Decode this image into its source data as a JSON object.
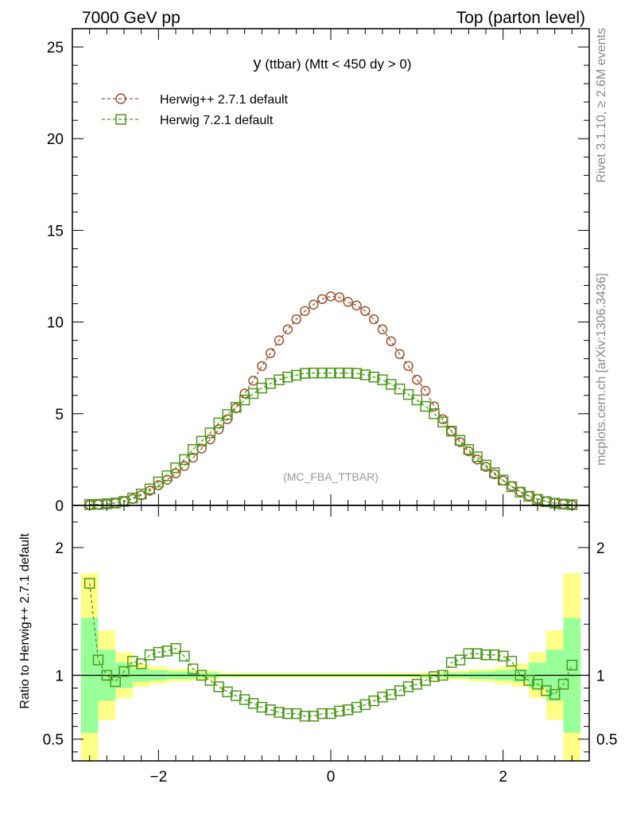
{
  "header": {
    "left": "7000 GeV pp",
    "right": "Top (parton level)"
  },
  "side_text": {
    "rivet": "Rivet 3.1.10, ≥ 2.6M events",
    "mcplots": "mcplots.cern.ch [arXiv:1306.3436]"
  },
  "watermark": "(MC_FBA_TTBAR)",
  "ratio_ylabel": "Ratio to Herwig++ 2.7.1 default",
  "chart_data": {
    "type": "line",
    "title_main": "y",
    "title_rest": " (ttbar) (Mtt < 450 dy > 0)",
    "xlim": [
      -3.0,
      3.0
    ],
    "ylim_main": [
      0,
      26
    ],
    "ylim_ratio": [
      0.33,
      2.33
    ],
    "x_ticks": [
      -2,
      0,
      2
    ],
    "y_ticks_main": [
      0,
      5,
      10,
      15,
      20,
      25
    ],
    "y_ticks_ratio": [
      0.5,
      1,
      2
    ],
    "x": [
      -2.8,
      -2.7,
      -2.6,
      -2.5,
      -2.4,
      -2.3,
      -2.2,
      -2.1,
      -2.0,
      -1.9,
      -1.8,
      -1.7,
      -1.6,
      -1.5,
      -1.4,
      -1.3,
      -1.2,
      -1.1,
      -1.0,
      -0.9,
      -0.8,
      -0.7,
      -0.6,
      -0.5,
      -0.4,
      -0.3,
      -0.2,
      -0.1,
      0.0,
      0.1,
      0.2,
      0.3,
      0.4,
      0.5,
      0.6,
      0.7,
      0.8,
      0.9,
      1.0,
      1.1,
      1.2,
      1.3,
      1.4,
      1.5,
      1.6,
      1.7,
      1.8,
      1.9,
      2.0,
      2.1,
      2.2,
      2.3,
      2.4,
      2.5,
      2.6,
      2.7,
      2.8
    ],
    "series": [
      {
        "name": "Herwig++ 2.7.1 default",
        "color": "#a0522d",
        "marker": "circle",
        "values": [
          0.03,
          0.05,
          0.08,
          0.13,
          0.22,
          0.35,
          0.55,
          0.8,
          1.1,
          1.4,
          1.75,
          2.15,
          2.6,
          3.1,
          3.6,
          4.15,
          4.7,
          5.3,
          6.1,
          6.8,
          7.6,
          8.3,
          9.0,
          9.6,
          10.15,
          10.6,
          10.95,
          11.25,
          11.4,
          11.35,
          11.1,
          10.9,
          10.6,
          10.15,
          9.6,
          8.95,
          8.25,
          7.6,
          6.85,
          6.25,
          5.4,
          4.7,
          4.05,
          3.45,
          2.95,
          2.5,
          2.1,
          1.7,
          1.35,
          1.05,
          0.75,
          0.52,
          0.35,
          0.22,
          0.13,
          0.07,
          0.03
        ]
      },
      {
        "name": "Herwig 7.2.1 default",
        "color": "#4a9a1a",
        "marker": "square",
        "values": [
          0.05,
          0.06,
          0.09,
          0.13,
          0.22,
          0.4,
          0.62,
          0.9,
          1.28,
          1.62,
          2.05,
          2.5,
          3.05,
          3.5,
          3.95,
          4.5,
          4.95,
          5.35,
          5.75,
          6.1,
          6.4,
          6.65,
          6.85,
          7.0,
          7.1,
          7.2,
          7.22,
          7.22,
          7.22,
          7.22,
          7.22,
          7.2,
          7.12,
          7.0,
          6.85,
          6.6,
          6.35,
          6.05,
          5.75,
          5.4,
          5.0,
          4.55,
          4.05,
          3.55,
          3.05,
          2.65,
          2.2,
          1.78,
          1.38,
          1.02,
          0.72,
          0.5,
          0.33,
          0.2,
          0.12,
          0.07,
          0.04
        ]
      }
    ],
    "ratio_values": [
      1.72,
      1.12,
      1.0,
      0.95,
      1.03,
      1.11,
      1.09,
      1.16,
      1.18,
      1.19,
      1.21,
      1.15,
      1.05,
      1.0,
      0.96,
      0.91,
      0.87,
      0.84,
      0.81,
      0.78,
      0.75,
      0.73,
      0.71,
      0.7,
      0.7,
      0.68,
      0.68,
      0.7,
      0.7,
      0.72,
      0.73,
      0.75,
      0.77,
      0.8,
      0.83,
      0.85,
      0.88,
      0.91,
      0.93,
      0.96,
      0.99,
      1.0,
      1.1,
      1.12,
      1.17,
      1.17,
      1.16,
      1.16,
      1.15,
      1.11,
      1.0,
      0.96,
      0.93,
      0.88,
      0.85,
      0.93,
      1.08
    ],
    "band_x_edges": [
      -2.9,
      -2.7,
      -2.5,
      -2.3,
      -2.1,
      -1.9,
      -1.6,
      -1.3,
      1.3,
      1.6,
      1.9,
      2.1,
      2.3,
      2.5,
      2.7,
      2.9
    ],
    "band_green_half": [
      0.45,
      0.2,
      0.1,
      0.05,
      0.04,
      0.03,
      0.02,
      0.01,
      0.02,
      0.03,
      0.04,
      0.05,
      0.1,
      0.2,
      0.45
    ],
    "band_yellow_half": [
      0.8,
      0.35,
      0.18,
      0.09,
      0.07,
      0.05,
      0.035,
      0.02,
      0.035,
      0.05,
      0.07,
      0.09,
      0.18,
      0.35,
      0.8
    ]
  }
}
